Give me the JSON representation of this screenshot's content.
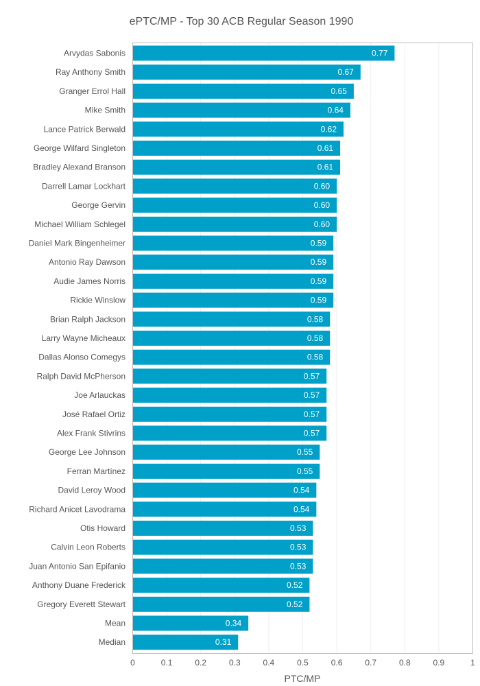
{
  "chart_data": {
    "type": "bar",
    "orientation": "horizontal",
    "title": "ePTC/MP - Top 30 ACB Regular Season 1990",
    "xlabel": "PTC/MP",
    "ylabel": "",
    "xlim": [
      0,
      1
    ],
    "x_ticks": [
      "0",
      "0.1",
      "0.2",
      "0.3",
      "0.4",
      "0.5",
      "0.6",
      "0.7",
      "0.8",
      "0.9",
      "1"
    ],
    "grid": true,
    "bar_color": "#00a0c8",
    "categories": [
      "Arvydas Sabonis",
      "Ray Anthony Smith",
      "Granger Errol Hall",
      "Mike Smith",
      "Lance Patrick Berwald",
      "George Wilfard Singleton",
      "Bradley Alexand Branson",
      "Darrell Lamar Lockhart",
      "George Gervin",
      "Michael William Schlegel",
      "Daniel Mark Bingenheimer",
      "Antonio Ray Dawson",
      "Audie James Norris",
      "Rickie Winslow",
      "Brian Ralph Jackson",
      "Larry Wayne Micheaux",
      "Dallas Alonso Comegys",
      "Ralph David McPherson",
      "Joe Arlauckas",
      "José Rafael Ortiz",
      "Alex Frank Stivrins",
      "George Lee Johnson",
      "Ferran Martínez",
      "David Leroy Wood",
      "Richard Anicet Lavodrama",
      "Otis Howard",
      "Calvin Leon Roberts",
      "Juan Antonio San Epifanio",
      "Anthony Duane Frederick",
      "Gregory Everett Stewart",
      "Mean",
      "Median"
    ],
    "values": [
      0.77,
      0.67,
      0.65,
      0.64,
      0.62,
      0.61,
      0.61,
      0.6,
      0.6,
      0.6,
      0.59,
      0.59,
      0.59,
      0.59,
      0.58,
      0.58,
      0.58,
      0.57,
      0.57,
      0.57,
      0.57,
      0.55,
      0.55,
      0.54,
      0.54,
      0.53,
      0.53,
      0.53,
      0.52,
      0.52,
      0.34,
      0.31
    ],
    "value_labels": [
      "0.77",
      "0.67",
      "0.65",
      "0.64",
      "0.62",
      "0.61",
      "0.61",
      "0.60",
      "0.60",
      "0.60",
      "0.59",
      "0.59",
      "0.59",
      "0.59",
      "0.58",
      "0.58",
      "0.58",
      "0.57",
      "0.57",
      "0.57",
      "0.57",
      "0.55",
      "0.55",
      "0.54",
      "0.54",
      "0.53",
      "0.53",
      "0.53",
      "0.52",
      "0.52",
      "0.34",
      "0.31"
    ]
  }
}
